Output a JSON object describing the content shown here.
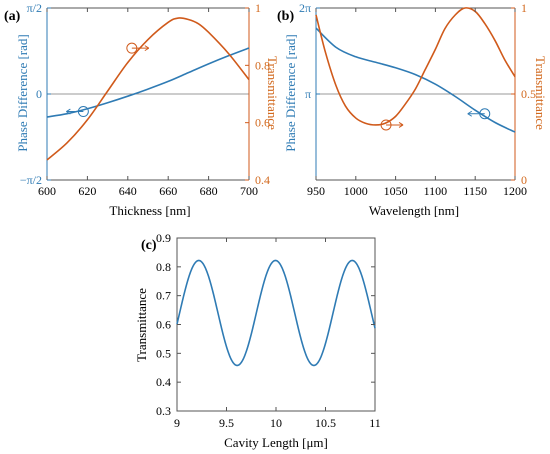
{
  "colors": {
    "blue": "#2f7bb4",
    "orange": "#d05a1b",
    "frame": "#808080",
    "zero_line": "#9a9a9a",
    "text": "#000000"
  },
  "chart_data": [
    {
      "panel_label": "(a)",
      "type": "line",
      "xlabel": "Thickness [nm]",
      "ylabel_left": "Phase Difference [rad]",
      "ylabel_right": "Transmittance",
      "xlim": [
        600,
        700
      ],
      "ylim_left": [
        -1.5708,
        1.5708
      ],
      "ylim_right": [
        0.4,
        1.0
      ],
      "xticks": [
        "600",
        "620",
        "640",
        "660",
        "680",
        "700"
      ],
      "yticks_left": [
        "−π/2",
        "0",
        "π/2"
      ],
      "yticks_right": [
        "0.4",
        "0.6",
        "0.8",
        "1"
      ],
      "zero_line": 0,
      "series": [
        {
          "axis": "left",
          "color": "blue",
          "x": [
            600,
            610,
            620,
            630,
            640,
            650,
            660,
            670,
            680,
            690,
            700
          ],
          "y": [
            -0.42,
            -0.36,
            -0.27,
            -0.16,
            -0.04,
            0.09,
            0.23,
            0.39,
            0.55,
            0.7,
            0.84
          ]
        },
        {
          "axis": "right",
          "color": "orange",
          "x": [
            600,
            610,
            620,
            630,
            640,
            650,
            660,
            665,
            670,
            675,
            680,
            690,
            700
          ],
          "y": [
            0.47,
            0.53,
            0.61,
            0.71,
            0.81,
            0.89,
            0.95,
            0.965,
            0.96,
            0.945,
            0.915,
            0.84,
            0.75
          ]
        }
      ],
      "markers": [
        {
          "axis": "left",
          "x": 618,
          "y": -0.32,
          "arrow": "left",
          "color": "blue"
        },
        {
          "axis": "right",
          "x": 642,
          "y": 0.86,
          "arrow": "right",
          "color": "orange"
        }
      ]
    },
    {
      "panel_label": "(b)",
      "type": "line",
      "xlabel": "Wavelength [nm]",
      "ylabel_left": "Phase Difference [rad]",
      "ylabel_right": "Transmittance",
      "xlim": [
        950,
        1200
      ],
      "ylim_left": [
        0,
        6.2832
      ],
      "ylim_right": [
        0,
        1.0
      ],
      "xticks": [
        "950",
        "1000",
        "1050",
        "1100",
        "1150",
        "1200"
      ],
      "yticks_left": [
        "π",
        "2π"
      ],
      "yticks_right": [
        "0",
        "0.5",
        "1"
      ],
      "zero_line": 3.1416,
      "series": [
        {
          "axis": "left",
          "color": "blue",
          "x": [
            950,
            975,
            1000,
            1025,
            1050,
            1075,
            1100,
            1125,
            1150,
            1175,
            1200
          ],
          "y": [
            5.55,
            4.85,
            4.5,
            4.3,
            4.1,
            3.85,
            3.5,
            3.05,
            2.55,
            2.1,
            1.75
          ]
        },
        {
          "axis": "right",
          "color": "orange",
          "x": [
            950,
            962,
            975,
            987,
            1000,
            1012,
            1025,
            1037,
            1050,
            1062,
            1075,
            1087,
            1100,
            1112,
            1125,
            1137,
            1150,
            1162,
            1175,
            1187,
            1200
          ],
          "y": [
            0.96,
            0.74,
            0.55,
            0.43,
            0.36,
            0.33,
            0.32,
            0.33,
            0.37,
            0.44,
            0.53,
            0.64,
            0.76,
            0.88,
            0.96,
            1.0,
            0.98,
            0.91,
            0.81,
            0.7,
            0.6
          ]
        }
      ],
      "markers": [
        {
          "axis": "right",
          "x": 1038,
          "y": 0.32,
          "arrow": "right",
          "color": "orange"
        },
        {
          "axis": "left",
          "x": 1162,
          "y": 2.42,
          "arrow": "left",
          "color": "blue"
        }
      ]
    },
    {
      "panel_label": "(c)",
      "type": "line",
      "xlabel": "Cavity Length [μm]",
      "ylabel": "Transmittance",
      "xlim": [
        9,
        11
      ],
      "ylim": [
        0.3,
        0.9
      ],
      "xticks": [
        "9",
        "9.5",
        "10",
        "10.5",
        "11"
      ],
      "yticks": [
        "0.3",
        "0.4",
        "0.5",
        "0.6",
        "0.7",
        "0.8",
        "0.9"
      ],
      "series": [
        {
          "color": "blue",
          "formula": "0.64 + 0.182*cos(2*pi*(x - 9.22)/0.775)",
          "x_start": 9,
          "x_end": 11
        }
      ]
    }
  ]
}
